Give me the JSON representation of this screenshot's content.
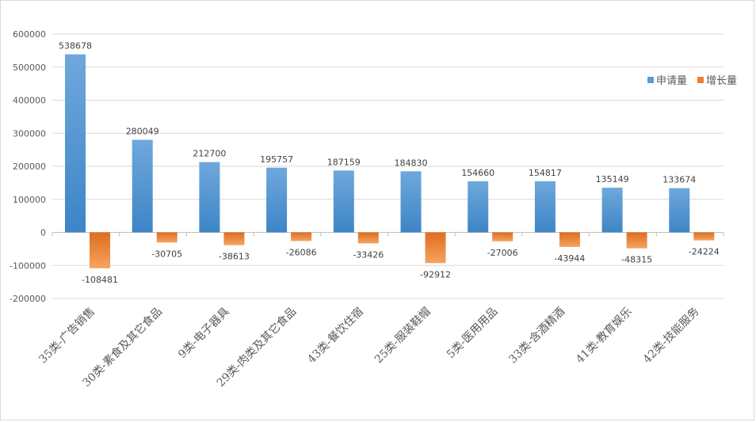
{
  "chart_data": {
    "type": "bar",
    "categories": [
      "35类-广告销售",
      "30类-素食及其它食品",
      "9类-电子器具",
      "29类-肉类及其它食品",
      "43类-餐饮住宿",
      "25类-服装鞋帽",
      "5类-医用用品",
      "33类-含酒精酒",
      "41类-教育娱乐",
      "42类-技能服务"
    ],
    "series": [
      {
        "name": "申请量",
        "values": [
          538678,
          280049,
          212700,
          195757,
          187159,
          184830,
          154660,
          154817,
          135149,
          133674
        ],
        "color": "#5b9bd5"
      },
      {
        "name": "增长量",
        "values": [
          -108481,
          -30705,
          -38613,
          -26086,
          -33426,
          -92912,
          -27006,
          -43944,
          -48315,
          -24224
        ],
        "color": "#ed7d31"
      }
    ],
    "ylim": [
      -200000,
      600000
    ],
    "yticks": [
      "-200000",
      "-100000",
      "0",
      "100000",
      "200000",
      "300000",
      "400000",
      "500000",
      "600000"
    ],
    "ytick_values": [
      -200000,
      -100000,
      0,
      100000,
      200000,
      300000,
      400000,
      500000,
      600000
    ],
    "grid": true,
    "legend_position": "right"
  }
}
